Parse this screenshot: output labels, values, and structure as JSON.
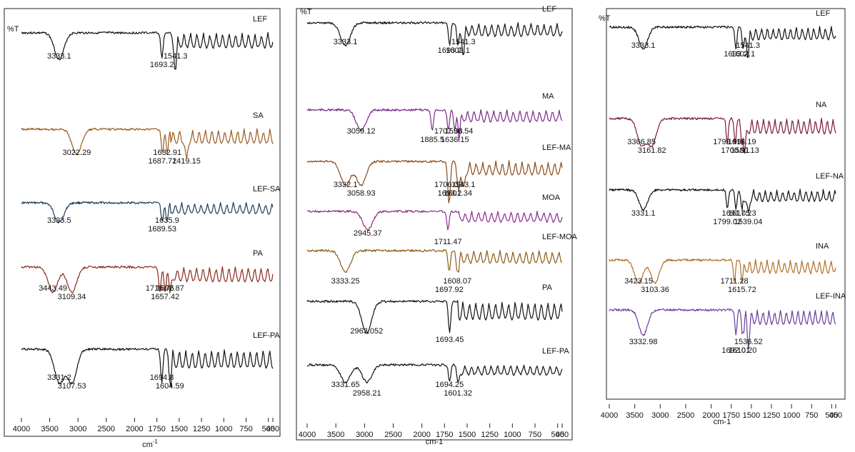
{
  "chart_data": [
    {
      "type": "line",
      "y_axis_label": "%T",
      "x_axis_label": "cm-1",
      "x_axis_label_superscript": "-1",
      "x_axis_label_base": "cm",
      "x_range": [
        4000,
        450
      ],
      "x_reversed": true,
      "x_ticks": [
        "4000",
        "3500",
        "3000",
        "2500",
        "2000",
        "1750",
        "1500",
        "1250",
        "1000",
        "750",
        "500",
        "450"
      ],
      "series": [
        {
          "name": "LEF",
          "color": "#111111",
          "peak_labels": [
            "3333.1",
            "1693.2",
            "1541.3"
          ]
        },
        {
          "name": "SA",
          "color": "#9a5a1e",
          "peak_labels": [
            "3022.29",
            "1687.72",
            "1632.91",
            "1419.15"
          ]
        },
        {
          "name": "LEF-SA",
          "color": "#1e3c5a",
          "peak_labels": [
            "3333.5",
            "1689.53",
            "1635.9"
          ]
        },
        {
          "name": "PA",
          "color": "#8a2a1a",
          "peak_labels": [
            "3443.49",
            "3109.34",
            "1716.76",
            "1657.42",
            "1602.87"
          ]
        },
        {
          "name": "LEF-PA",
          "color": "#111111",
          "peak_labels": [
            "3331.2",
            "3107.53",
            "1694.8",
            "1604.59"
          ]
        }
      ]
    },
    {
      "type": "line",
      "y_axis_label": "%T",
      "x_axis_label": "cm-1",
      "x_range": [
        4000,
        450
      ],
      "x_reversed": true,
      "x_ticks": [
        "4000",
        "3500",
        "3000",
        "2500",
        "2000",
        "1750",
        "1500",
        "1250",
        "1000",
        "750",
        "500",
        "450"
      ],
      "series": [
        {
          "name": "LEF",
          "color": "#111111",
          "peak_labels": [
            "3333.1",
            "1693.2",
            "1541.3",
            "1602.1"
          ]
        },
        {
          "name": "MA",
          "color": "#7a2a8a",
          "peak_labels": [
            "3059.12",
            "1885.5",
            "1707.36",
            "1636.15",
            "1590.54"
          ]
        },
        {
          "name": "LEF-MA",
          "color": "#8a4a1a",
          "peak_labels": [
            "3332.1",
            "3058.93",
            "1706.03",
            "1693.2",
            "1543.1",
            "1601.34"
          ]
        },
        {
          "name": "MOA",
          "color": "#8a2a8a",
          "peak_labels": [
            "2945.37",
            "1711.47"
          ]
        },
        {
          "name": "LEF-MOA",
          "color": "#8a5a10",
          "peak_labels": [
            "3333.25",
            "1697.92",
            "1608.07"
          ]
        },
        {
          "name": "PA",
          "color": "#111111",
          "peak_labels": [
            "2963.052",
            "1693.45"
          ]
        },
        {
          "name": "LEF-PA",
          "color": "#111111",
          "peak_labels": [
            "3331.65",
            "2958.21",
            "1694.25",
            "1601.32"
          ]
        }
      ]
    },
    {
      "type": "line",
      "y_axis_label": "%T",
      "x_axis_label": "cm-1",
      "x_range": [
        4000,
        450
      ],
      "x_reversed": true,
      "x_ticks": [
        "4000",
        "3500",
        "3000",
        "2500",
        "2000",
        "1750",
        "1500",
        "1250",
        "1000",
        "750",
        "500",
        "450"
      ],
      "series": [
        {
          "name": "LEF",
          "color": "#111111",
          "peak_labels": [
            "3333.1",
            "1693.2",
            "1541.3",
            "1602.1"
          ]
        },
        {
          "name": "NA",
          "color": "#7a1a3a",
          "peak_labels": [
            "3366.85",
            "3161.82",
            "1799.99",
            "1700.91",
            "1618.19",
            "1580.13"
          ]
        },
        {
          "name": "LEF-NA",
          "color": "#111111",
          "peak_labels": [
            "3331.1",
            "1799.02",
            "1691.05",
            "1539.04",
            "1617.23"
          ]
        },
        {
          "name": "INA",
          "color": "#b0702a",
          "peak_labels": [
            "3423.15",
            "3103.36",
            "1711.28",
            "1615.72"
          ]
        },
        {
          "name": "LEF-INA",
          "color": "#6a3a9a",
          "peak_labels": [
            "3332.98",
            "1692.01",
            "1536.52",
            "1610.20"
          ]
        }
      ]
    }
  ]
}
